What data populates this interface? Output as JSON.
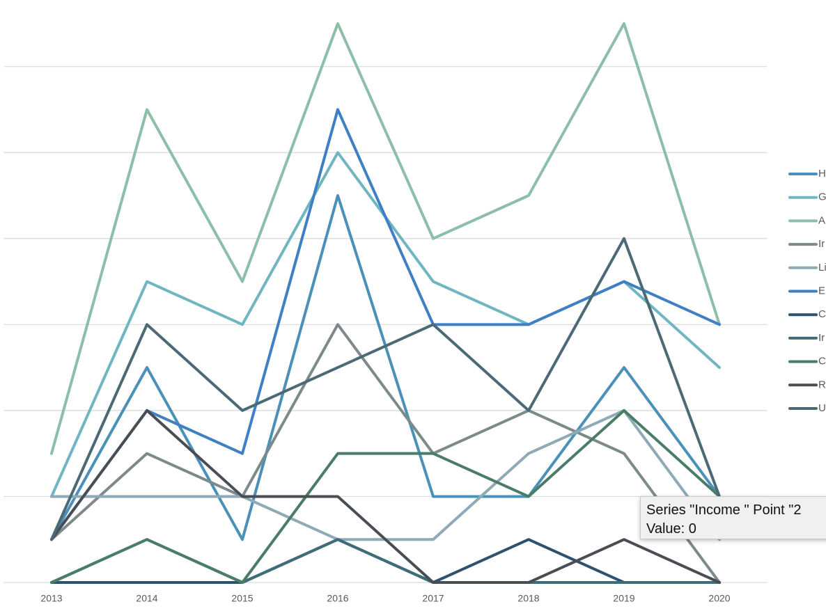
{
  "chart_data": {
    "type": "line",
    "categories": [
      "2013",
      "2014",
      "2015",
      "2016",
      "2017",
      "2018",
      "2019",
      "2020"
    ],
    "series": [
      {
        "name": "H",
        "color": "#4a90b8",
        "values": [
          1,
          5,
          1,
          9,
          2,
          2,
          5,
          2
        ]
      },
      {
        "name": "G",
        "color": "#6fb6c2",
        "values": [
          2,
          7,
          6,
          10,
          7,
          6,
          7,
          5
        ]
      },
      {
        "name": "A",
        "color": "#8cbfa8",
        "values": [
          3,
          11,
          7,
          13,
          8,
          9,
          13,
          6
        ]
      },
      {
        "name": "Ir",
        "color": "#7d8a8c",
        "values": [
          1,
          3,
          2,
          6,
          3,
          4,
          3,
          0
        ]
      },
      {
        "name": "Li",
        "color": "#8eaab6",
        "values": [
          2,
          2,
          2,
          1,
          1,
          3,
          4,
          1
        ]
      },
      {
        "name": "E",
        "color": "#3f80c4",
        "values": [
          1,
          4,
          3,
          11,
          6,
          6,
          7,
          6
        ]
      },
      {
        "name": "C",
        "color": "#2d5270",
        "values": [
          0,
          0,
          0,
          1,
          0,
          1,
          0,
          0
        ]
      },
      {
        "name": "Ir",
        "color": "#3e6d78",
        "values": [
          0,
          1,
          0,
          1,
          0,
          0,
          0,
          0
        ]
      },
      {
        "name": "C",
        "color": "#4a7d67",
        "values": [
          0,
          1,
          0,
          3,
          3,
          2,
          4,
          2
        ]
      },
      {
        "name": "R",
        "color": "#484e54",
        "values": [
          1,
          4,
          2,
          2,
          0,
          0,
          1,
          0
        ]
      },
      {
        "name": "U",
        "color": "#4b6a76",
        "values": [
          1,
          6,
          4,
          5,
          6,
          4,
          8,
          2
        ]
      }
    ],
    "ylim": [
      0,
      13.5
    ],
    "yticks": [
      0,
      2,
      4,
      6,
      8,
      10,
      12
    ],
    "grid": true,
    "legend": "right"
  },
  "tooltip": {
    "title": "Series \"Income \" Point \"2",
    "value": "Value: 0"
  }
}
